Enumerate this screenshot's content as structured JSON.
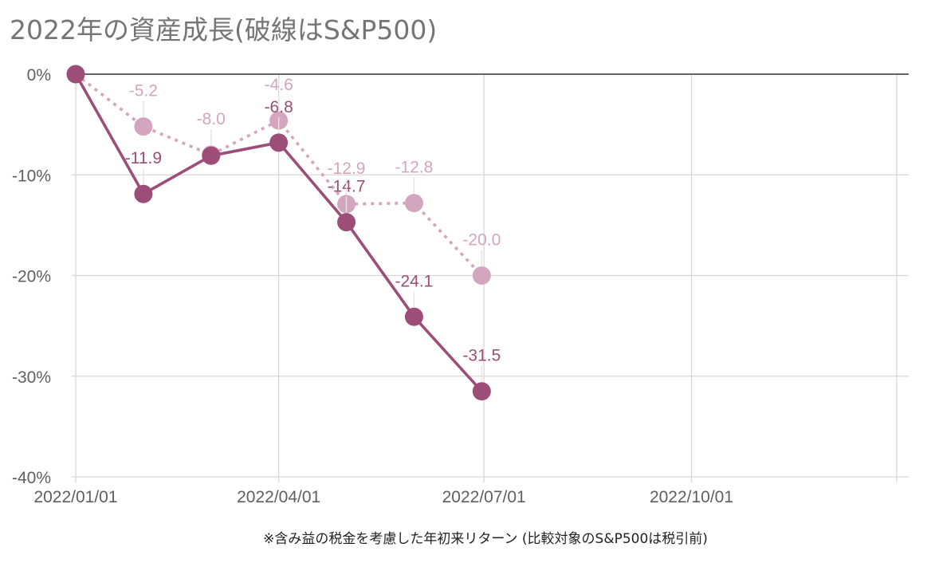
{
  "chart_data": {
    "type": "line",
    "title": "2022年の資産成長(破線はS&P500)",
    "footnote": "※含み益の税金を考慮した年初来リターン (比較対象のS&P500は税引前)",
    "xlim": [
      "2022-01-01",
      "2022-12-31"
    ],
    "x_ticks": [
      "2022-01-01",
      "2022-04-01",
      "2022-07-01",
      "2022-10-01"
    ],
    "x_tick_labels": [
      "2022/01/01",
      "2022/04/01",
      "2022/07/01",
      "2022/10/01"
    ],
    "y_ticks": [
      0,
      -10,
      -20,
      -30,
      -40
    ],
    "y_tick_labels": [
      "0%",
      "-10%",
      "-20%",
      "-30%",
      "-40%"
    ],
    "ylim": [
      -40,
      0
    ],
    "grid": true,
    "x": [
      "2022-01-01",
      "2022-01-31",
      "2022-03-02",
      "2022-04-01",
      "2022-05-01",
      "2022-05-31",
      "2022-06-30"
    ],
    "series": [
      {
        "values": [
          0,
          -11.9,
          -8.1,
          -6.8,
          -14.7,
          -24.1,
          -31.5
        ],
        "labels": [
          "",
          "-11.9",
          "",
          "-6.8",
          "-14.7",
          "-24.1",
          "-31.5"
        ],
        "color": "#9c4e78",
        "style": "solid"
      },
      {
        "values": [
          0,
          -5.2,
          -8.0,
          -4.6,
          -12.9,
          -12.8,
          -20.0
        ],
        "labels": [
          "",
          "-5.2",
          "-8.0",
          "-4.6",
          "-12.9",
          "-12.8",
          "-20.0"
        ],
        "color": "#d4a5bf",
        "style": "dotted"
      }
    ]
  }
}
